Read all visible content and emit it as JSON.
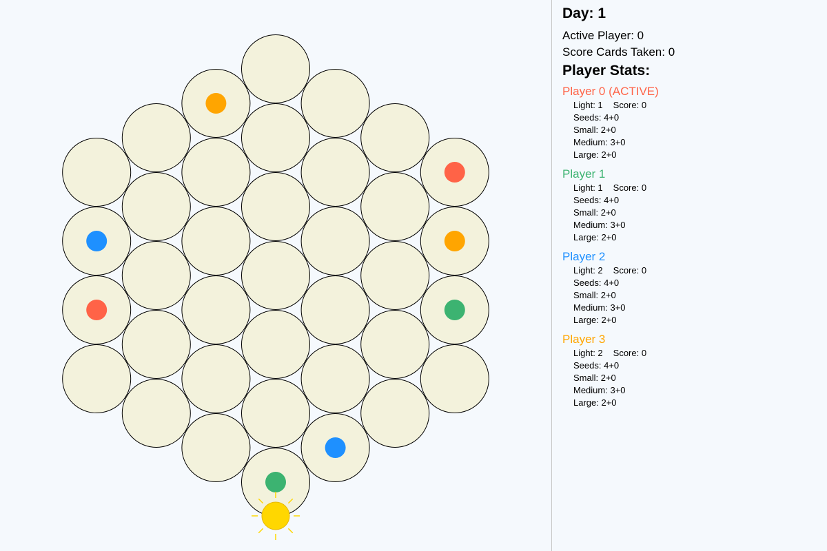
{
  "board": {
    "cell_fill": "#f3f2dc",
    "cell_stroke": "#000000",
    "cells": [
      {
        "q": 0,
        "r": -3
      },
      {
        "q": 1,
        "r": -3
      },
      {
        "q": 2,
        "r": -3
      },
      {
        "q": 3,
        "r": -3
      },
      {
        "q": -1,
        "r": -2
      },
      {
        "q": 0,
        "r": -2
      },
      {
        "q": 1,
        "r": -2
      },
      {
        "q": 2,
        "r": -2
      },
      {
        "q": 3,
        "r": -2
      },
      {
        "q": -2,
        "r": -1
      },
      {
        "q": -1,
        "r": -1
      },
      {
        "q": 0,
        "r": -1
      },
      {
        "q": 1,
        "r": -1
      },
      {
        "q": 2,
        "r": -1
      },
      {
        "q": 3,
        "r": -1
      },
      {
        "q": -3,
        "r": 0
      },
      {
        "q": -2,
        "r": 0
      },
      {
        "q": -1,
        "r": 0
      },
      {
        "q": 0,
        "r": 0
      },
      {
        "q": 1,
        "r": 0
      },
      {
        "q": 2,
        "r": 0
      },
      {
        "q": 3,
        "r": 0
      },
      {
        "q": -3,
        "r": 1
      },
      {
        "q": -2,
        "r": 1
      },
      {
        "q": -1,
        "r": 1
      },
      {
        "q": 0,
        "r": 1
      },
      {
        "q": 1,
        "r": 1
      },
      {
        "q": 2,
        "r": 1
      },
      {
        "q": -3,
        "r": 2
      },
      {
        "q": -2,
        "r": 2
      },
      {
        "q": -1,
        "r": 2
      },
      {
        "q": 0,
        "r": 2
      },
      {
        "q": 1,
        "r": 2
      },
      {
        "q": -3,
        "r": 3
      },
      {
        "q": -2,
        "r": 3
      },
      {
        "q": -1,
        "r": 3
      },
      {
        "q": 0,
        "r": 3
      }
    ],
    "pieces": [
      {
        "q": -1,
        "r": -2,
        "player": 3
      },
      {
        "q": 3,
        "r": -2,
        "player": 3
      },
      {
        "q": -3,
        "r": 1,
        "player": 2
      },
      {
        "q": 1,
        "r": 2,
        "player": 2
      },
      {
        "q": -3,
        "r": 2,
        "player": 0
      },
      {
        "q": 3,
        "r": -3,
        "player": 0
      },
      {
        "q": 3,
        "r": -1,
        "player": 1
      },
      {
        "q": 0,
        "r": 3,
        "player": 1
      }
    ],
    "sun": {
      "position": "bottom",
      "color": "#ffd700",
      "ray_color": "#ffd700"
    }
  },
  "player_colors": [
    "#ff6347",
    "#3cb371",
    "#1e90ff",
    "#ffa500"
  ],
  "panel": {
    "day": "Day: 1",
    "active_player": "Active Player: 0",
    "score_cards": "Score Cards Taken: 0",
    "stats_title": "Player Stats:"
  },
  "players": [
    {
      "name": "Player 0 (ACTIVE)",
      "light": "Light: 1",
      "score": "Score: 0",
      "seeds": "Seeds: 4+0",
      "small": "Small: 2+0",
      "medium": "Medium: 3+0",
      "large": "Large: 2+0"
    },
    {
      "name": "Player 1",
      "light": "Light: 1",
      "score": "Score: 0",
      "seeds": "Seeds: 4+0",
      "small": "Small: 2+0",
      "medium": "Medium: 3+0",
      "large": "Large: 2+0"
    },
    {
      "name": "Player 2",
      "light": "Light: 2",
      "score": "Score: 0",
      "seeds": "Seeds: 4+0",
      "small": "Small: 2+0",
      "medium": "Medium: 3+0",
      "large": "Large: 2+0"
    },
    {
      "name": "Player 3",
      "light": "Light: 2",
      "score": "Score: 0",
      "seeds": "Seeds: 4+0",
      "small": "Small: 2+0",
      "medium": "Medium: 3+0",
      "large": "Large: 2+0"
    }
  ]
}
